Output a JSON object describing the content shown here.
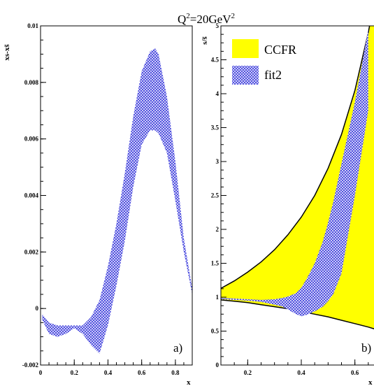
{
  "figure_title": {
    "base": "Q",
    "sup1": "2",
    "mid": "=20GeV",
    "sup2": "2"
  },
  "colors": {
    "hatch": "#4444dd",
    "band": "#ffff00",
    "curve": "#000000"
  },
  "chart_data": [
    {
      "type": "area",
      "panel_label": "a)",
      "ylabel": "xs-xs̄",
      "xlabel": "x",
      "xlim": [
        0,
        0.9
      ],
      "ylim": [
        -0.002,
        0.01
      ],
      "xticks": [
        0,
        0.2,
        0.4,
        0.6,
        0.8
      ],
      "xtick_labels": [
        "0",
        "0.2",
        "0.4",
        "0.6",
        "0.8"
      ],
      "yticks": [
        -0.002,
        0,
        0.002,
        0.004,
        0.006,
        0.008,
        0.01
      ],
      "ytick_labels": [
        "-0.002",
        "0",
        "0.002",
        "0.004",
        "0.006",
        "0.008",
        "0.01"
      ],
      "series": [
        {
          "fill": "hatch",
          "x": [
            0.01,
            0.05,
            0.1,
            0.15,
            0.2,
            0.25,
            0.3,
            0.35,
            0.4,
            0.45,
            0.5,
            0.55,
            0.6,
            0.65,
            0.68,
            0.7,
            0.75,
            0.8,
            0.85,
            0.9
          ],
          "upper": [
            -0.0002,
            -0.0005,
            -0.0006,
            -0.0006,
            -0.0006,
            -0.0006,
            -0.0003,
            0.0003,
            0.0015,
            0.003,
            0.0048,
            0.0068,
            0.0084,
            0.0091,
            0.0092,
            0.009,
            0.0075,
            0.0052,
            0.0025,
            0.0007
          ],
          "lower": [
            -0.0004,
            -0.0009,
            -0.001,
            -0.0009,
            -0.0007,
            -0.0009,
            -0.0013,
            -0.0016,
            -0.0006,
            0.0008,
            0.0024,
            0.0043,
            0.0058,
            0.0063,
            0.0063,
            0.0062,
            0.0055,
            0.0038,
            0.002,
            0.0005
          ]
        }
      ]
    },
    {
      "type": "area",
      "panel_label": "b)",
      "ylabel": "s/s̄",
      "xlabel": "x",
      "xlim": [
        0.1,
        0.7
      ],
      "ylim": [
        0,
        5
      ],
      "xticks": [
        0.2,
        0.4,
        0.6
      ],
      "xtick_labels": [
        "0.2",
        "0.4",
        "0.6"
      ],
      "yticks": [
        0,
        0.5,
        1,
        1.5,
        2,
        2.5,
        3,
        3.5,
        4,
        4.5,
        5
      ],
      "ytick_labels": [
        "0",
        "0.5",
        "1",
        "1.5",
        "2",
        "2.5",
        "3",
        "3.5",
        "4",
        "4.5",
        "5"
      ],
      "legend": [
        {
          "label": "CCFR",
          "fill": "band"
        },
        {
          "label": "fit2",
          "fill": "hatch"
        }
      ],
      "series": [
        {
          "name": "CCFR",
          "fill": "band",
          "x": [
            0.1,
            0.15,
            0.2,
            0.25,
            0.3,
            0.35,
            0.4,
            0.45,
            0.5,
            0.55,
            0.6,
            0.65,
            0.7
          ],
          "upper": [
            1.13,
            1.24,
            1.37,
            1.52,
            1.7,
            1.92,
            2.18,
            2.5,
            2.9,
            3.4,
            4.05,
            4.9,
            5.95
          ],
          "lower": [
            0.96,
            0.94,
            0.92,
            0.89,
            0.86,
            0.83,
            0.79,
            0.75,
            0.71,
            0.66,
            0.61,
            0.56,
            0.5
          ]
        },
        {
          "name": "fit2",
          "fill": "hatch",
          "x": [
            0.1,
            0.15,
            0.2,
            0.25,
            0.3,
            0.33,
            0.35,
            0.38,
            0.4,
            0.42,
            0.45,
            0.48,
            0.5,
            0.52,
            0.55,
            0.6,
            0.65
          ],
          "upper": [
            0.99,
            0.98,
            0.97,
            0.96,
            0.97,
            0.99,
            1.01,
            1.06,
            1.14,
            1.27,
            1.5,
            1.82,
            2.1,
            2.42,
            2.97,
            3.88,
            4.95
          ],
          "lower": [
            0.97,
            0.96,
            0.95,
            0.93,
            0.89,
            0.86,
            0.82,
            0.75,
            0.72,
            0.74,
            0.79,
            0.86,
            0.94,
            1.05,
            1.35,
            2.5,
            3.75
          ]
        }
      ]
    }
  ]
}
